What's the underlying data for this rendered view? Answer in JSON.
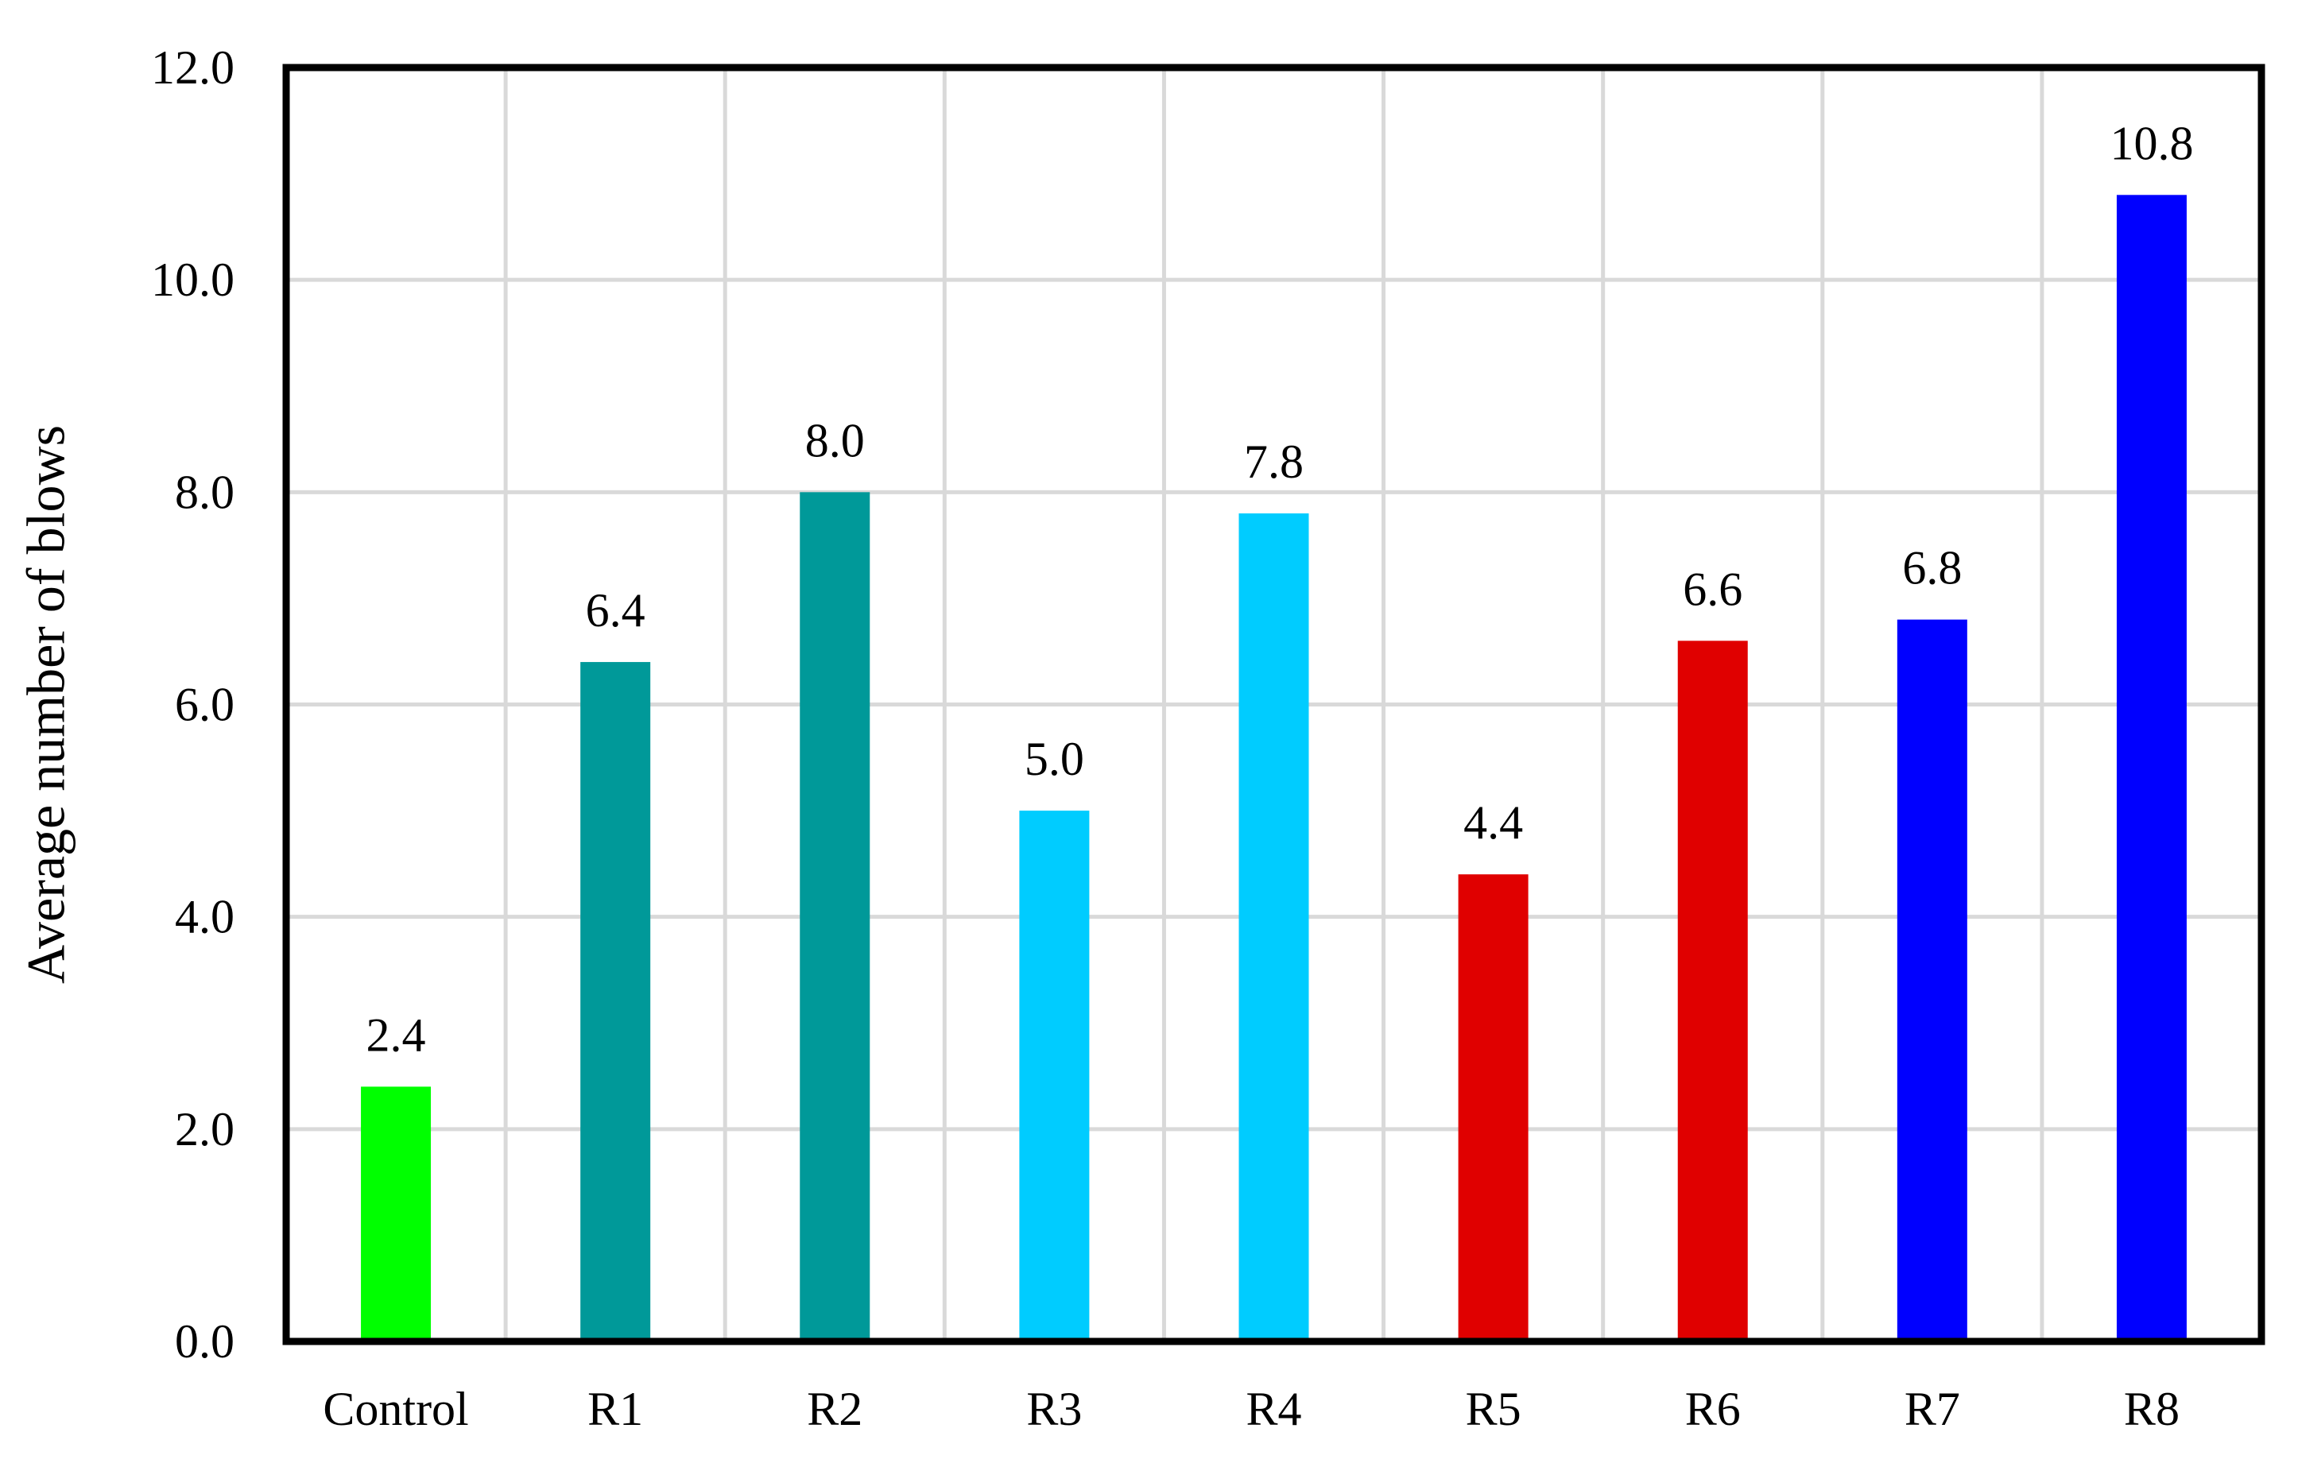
{
  "chart_data": {
    "type": "bar",
    "title": "",
    "xlabel": "",
    "ylabel": "Average number of blows",
    "categories": [
      "Control",
      "R1",
      "R2",
      "R3",
      "R4",
      "R5",
      "R6",
      "R7",
      "R8"
    ],
    "values": [
      2.4,
      6.4,
      8.0,
      5.0,
      7.8,
      4.4,
      6.6,
      6.8,
      10.8
    ],
    "data_labels": [
      "2.4",
      "6.4",
      "8.0",
      "5.0",
      "7.8",
      "4.4",
      "6.6",
      "6.8",
      "10.8"
    ],
    "bar_colors": [
      "#00ff00",
      "#009999",
      "#009999",
      "#00ccff",
      "#00ccff",
      "#e00000",
      "#e00000",
      "#0000ff",
      "#0000ff"
    ],
    "ylim": [
      0,
      12
    ],
    "yticks": [
      "0.0",
      "2.0",
      "4.0",
      "6.0",
      "8.0",
      "10.0",
      "12.0"
    ],
    "grid": true,
    "legend": "none"
  }
}
